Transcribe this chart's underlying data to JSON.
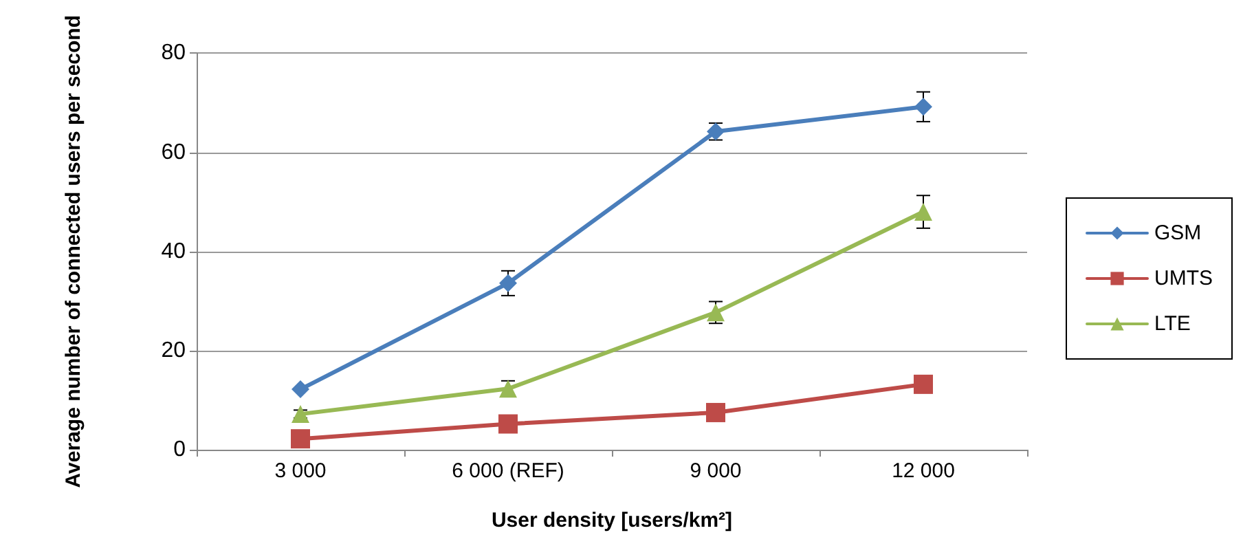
{
  "chart_data": {
    "type": "line",
    "xlabel": "User density [users/km²]",
    "ylabel": "Average number of connected users per second",
    "categories": [
      "3 000",
      "6 000 (REF)",
      "9 000",
      "12 000"
    ],
    "ylim": [
      0,
      80
    ],
    "yticks": [
      0,
      20,
      40,
      60,
      80
    ],
    "grid": "y",
    "legend": "right",
    "series": [
      {
        "name": "GSM",
        "color": "#4a7ebb",
        "marker": "diamond",
        "values": [
          12.2,
          33.6,
          64.2,
          69.2
        ],
        "errors": [
          null,
          2.5,
          1.7,
          3
        ]
      },
      {
        "name": "UMTS",
        "color": "#be4b48",
        "marker": "square",
        "values": [
          2.2,
          5.2,
          7.5,
          13.2
        ]
      },
      {
        "name": "LTE",
        "color": "#98b954",
        "marker": "triangle",
        "values": [
          7.2,
          12.3,
          27.7,
          48
        ],
        "errors": [
          0.8,
          1.6,
          2.2,
          3.3
        ]
      }
    ]
  }
}
